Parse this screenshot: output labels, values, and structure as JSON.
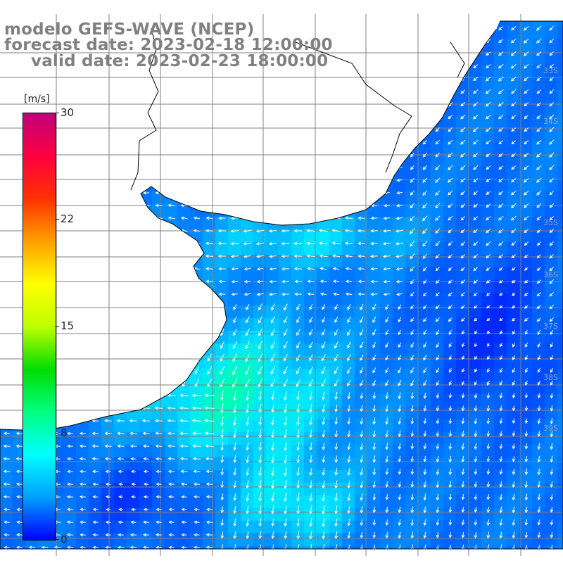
{
  "title": {
    "line1": "modelo GEFS-WAVE (NCEP)",
    "line2": "forecast date: 2023-02-18 12:00:00",
    "line3": "valid date: 2023-02-23 18:00:00"
  },
  "colorbar": {
    "unit": "[m/s]",
    "ticks": [
      "30",
      "22",
      "15",
      "8",
      "0"
    ],
    "stops": [
      "#0000ff",
      "#00a0ff",
      "#00ffff",
      "#00ff80",
      "#00dd00",
      "#c0ff00",
      "#ffff00",
      "#ffa000",
      "#ff3000",
      "#ff0040",
      "#c0007a"
    ]
  },
  "lat_labels": [
    "33S",
    "34S",
    "35S",
    "36S",
    "37S",
    "38S",
    "39S"
  ],
  "colors": {
    "ocean_blue": "#0055ff",
    "ocean_cyan": "#00ffe0",
    "land": "#ffffff",
    "coast": "#000000",
    "grid": "#808080",
    "arrow": "#ffffff"
  }
}
